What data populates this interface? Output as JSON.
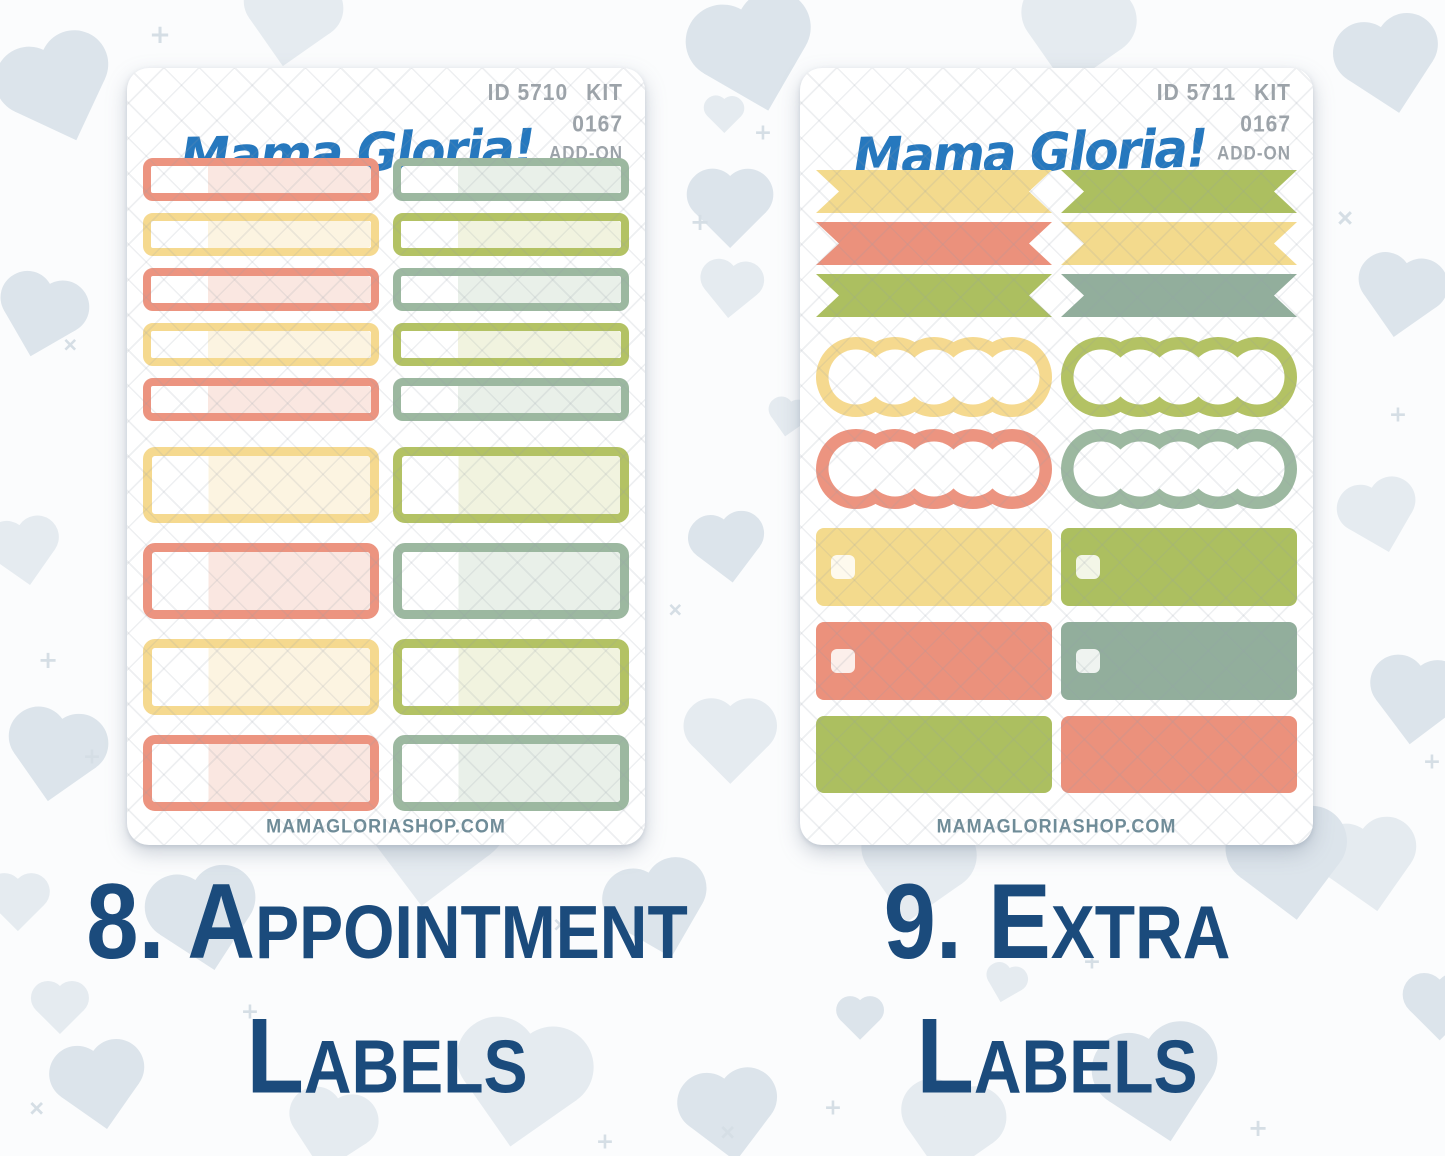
{
  "colors": {
    "page_bg": "#FBFCFD",
    "heart": "#DCE4EB",
    "heart_light": "#E5EBF0",
    "mark": "#D5DEE5",
    "navy": "#1B4B7C",
    "logo_blue": "#2678BE",
    "meta_gray": "#9CA3A9",
    "footer_teal": "#6F8C98"
  },
  "palette": {
    "salmon": {
      "border": "#EC9480",
      "fill": "#EB917C",
      "tint": "#FAE7E1"
    },
    "yellow": {
      "border": "#F5D98F",
      "fill": "#F3DA8D",
      "tint": "#FCF4E1"
    },
    "olive": {
      "border": "#B3C264",
      "fill": "#ACBF60",
      "tint": "#F1F3DF"
    },
    "sage": {
      "border": "#9CB8A0",
      "fill": "#92AE9C",
      "tint": "#E9F0E9"
    }
  },
  "sheets": [
    {
      "logo": "Mama Gloria!",
      "id_label": "ID 5710",
      "kit_word": "KIT",
      "kit_number": "0167",
      "kit_addon": "ADD-ON",
      "website": "MAMAGLORIASHOP.COM",
      "caption_line1": "8. Appointment",
      "caption_line2": "Labels",
      "rows": [
        {
          "style": "thin-outline",
          "left": "salmon",
          "right": "sage"
        },
        {
          "style": "thin-outline",
          "left": "yellow",
          "right": "olive"
        },
        {
          "style": "thin-outline",
          "left": "salmon",
          "right": "sage"
        },
        {
          "style": "thin-outline",
          "left": "yellow",
          "right": "olive"
        },
        {
          "style": "thin-outline",
          "left": "salmon",
          "right": "sage"
        },
        {
          "style": "tall-outline",
          "left": "yellow",
          "right": "olive"
        },
        {
          "style": "tall-outline",
          "left": "salmon",
          "right": "sage"
        },
        {
          "style": "tall-outline",
          "left": "yellow",
          "right": "olive"
        },
        {
          "style": "tall-outline",
          "left": "salmon",
          "right": "sage"
        }
      ]
    },
    {
      "logo": "Mama Gloria!",
      "id_label": "ID 5711",
      "kit_word": "KIT",
      "kit_number": "0167",
      "kit_addon": "ADD-ON",
      "website": "MAMAGLORIASHOP.COM",
      "caption_line1": "9. Extra",
      "caption_line2": "Labels",
      "rows": [
        {
          "style": "flag",
          "left": "yellow",
          "right": "olive"
        },
        {
          "style": "flag",
          "left": "salmon",
          "right": "yellow"
        },
        {
          "style": "flag",
          "left": "olive",
          "right": "sage"
        },
        {
          "style": "scallop",
          "left": "yellow",
          "right": "olive"
        },
        {
          "style": "scallop",
          "left": "salmon",
          "right": "sage"
        },
        {
          "style": "checkbox-rect",
          "left": "yellow",
          "right": "olive"
        },
        {
          "style": "checkbox-rect",
          "left": "salmon",
          "right": "sage"
        },
        {
          "style": "plain-rect",
          "left": "olive",
          "right": "salmon"
        }
      ]
    }
  ]
}
